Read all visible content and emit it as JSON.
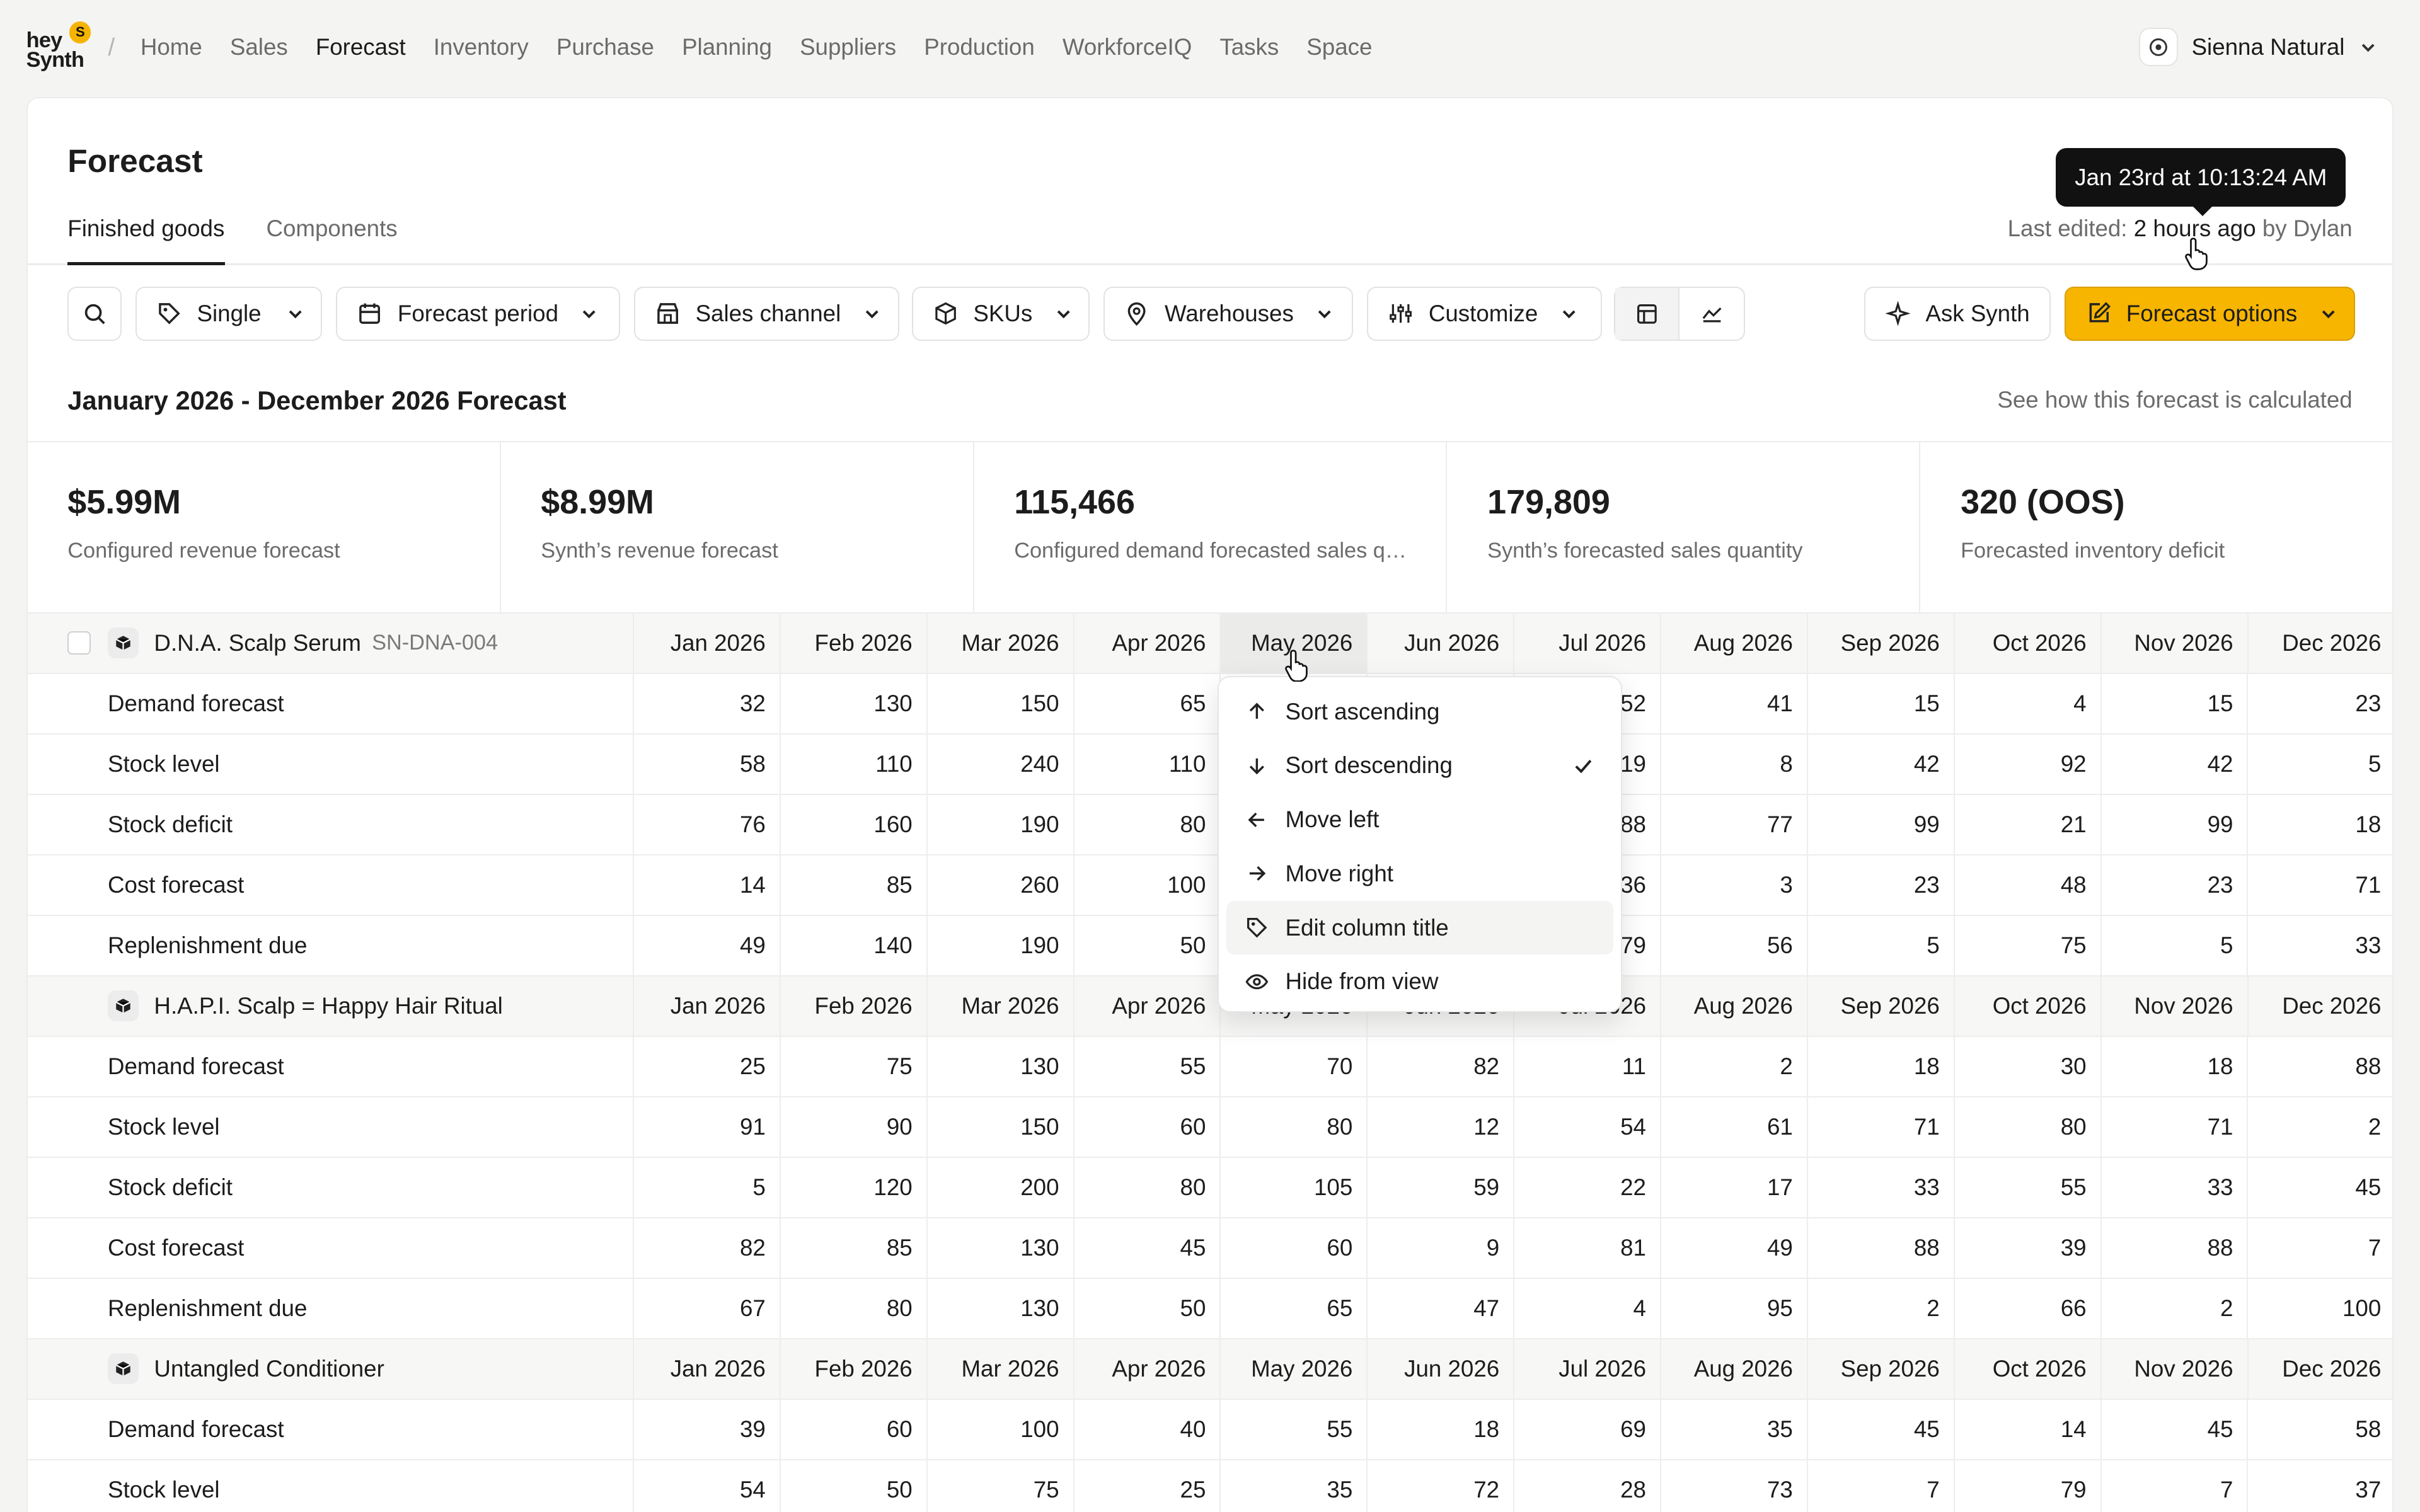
{
  "app": {
    "logo_line1": "hey",
    "logo_line2": "Synth",
    "logo_badge": "S",
    "breadcrumb_sep": "/"
  },
  "nav": [
    "Home",
    "Sales",
    "Forecast",
    "Inventory",
    "Purchase",
    "Planning",
    "Suppliers",
    "Production",
    "WorkforceIQ",
    "Tasks",
    "Space"
  ],
  "nav_active": "Forecast",
  "org": {
    "name": "Sienna Natural"
  },
  "page": {
    "title": "Forecast",
    "tabs": [
      "Finished goods",
      "Components"
    ],
    "last_edited_prefix": "Last edited:",
    "last_edited_time": "2 hours ago",
    "last_edited_by": "by Dylan",
    "tooltip": "Jan 23rd at 10:13:24 AM"
  },
  "toolbar": {
    "single": "Single",
    "period": "Forecast period",
    "channel": "Sales channel",
    "skus": "SKUs",
    "warehouses": "Warehouses",
    "customize": "Customize",
    "ask": "Ask Synth",
    "options": "Forecast options"
  },
  "range": {
    "title": "January 2026 - December 2026 Forecast",
    "link": "See how this forecast is calculated"
  },
  "metrics": [
    {
      "value": "$5.99M",
      "label": "Configured revenue forecast"
    },
    {
      "value": "$8.99M",
      "label": "Synth’s revenue forecast"
    },
    {
      "value": "115,466",
      "label": "Configured demand forecasted sales quantity"
    },
    {
      "value": "179,809",
      "label": "Synth’s forecasted sales quantity"
    },
    {
      "value": "320 (OOS)",
      "label": "Forecasted inventory deficit"
    }
  ],
  "months": [
    "Jan 2026",
    "Feb 2026",
    "Mar 2026",
    "Apr 2026",
    "May 2026",
    "Jun 2026",
    "Jul 2026",
    "Aug 2026",
    "Sep 2026",
    "Oct 2026",
    "Nov 2026",
    "Dec 2026"
  ],
  "products": [
    {
      "name": "D.N.A. Scalp Serum",
      "sku": "SN-DNA-004",
      "rows": [
        {
          "label": "Demand forecast",
          "values": [
            "32",
            "130",
            "150",
            "65",
            "",
            "",
            "52",
            "41",
            "15",
            "4",
            "15",
            "23"
          ]
        },
        {
          "label": "Stock level",
          "values": [
            "58",
            "110",
            "240",
            "110",
            "",
            "",
            "19",
            "8",
            "42",
            "92",
            "42",
            "5"
          ]
        },
        {
          "label": "Stock deficit",
          "values": [
            "76",
            "160",
            "190",
            "80",
            "",
            "",
            "88",
            "77",
            "99",
            "21",
            "99",
            "18"
          ]
        },
        {
          "label": "Cost forecast",
          "values": [
            "14",
            "85",
            "260",
            "100",
            "",
            "",
            "36",
            "3",
            "23",
            "48",
            "23",
            "71"
          ]
        },
        {
          "label": "Replenishment due",
          "values": [
            "49",
            "140",
            "190",
            "50",
            "",
            "",
            "79",
            "56",
            "5",
            "75",
            "5",
            "33"
          ]
        }
      ]
    },
    {
      "name": "H.A.P.I. Scalp = Happy Hair Ritual",
      "sku": "",
      "rows": [
        {
          "label": "Demand forecast",
          "values": [
            "25",
            "75",
            "130",
            "55",
            "70",
            "82",
            "11",
            "2",
            "18",
            "30",
            "18",
            "88"
          ]
        },
        {
          "label": "Stock level",
          "values": [
            "91",
            "90",
            "150",
            "60",
            "80",
            "12",
            "54",
            "61",
            "71",
            "80",
            "71",
            "2"
          ]
        },
        {
          "label": "Stock deficit",
          "values": [
            "5",
            "120",
            "200",
            "80",
            "105",
            "59",
            "22",
            "17",
            "33",
            "55",
            "33",
            "45"
          ]
        },
        {
          "label": "Cost forecast",
          "values": [
            "82",
            "85",
            "130",
            "45",
            "60",
            "9",
            "81",
            "49",
            "88",
            "39",
            "88",
            "7"
          ]
        },
        {
          "label": "Replenishment due",
          "values": [
            "67",
            "80",
            "130",
            "50",
            "65",
            "47",
            "4",
            "95",
            "2",
            "66",
            "2",
            "100"
          ]
        }
      ]
    },
    {
      "name": "Untangled Conditioner",
      "sku": "",
      "rows": [
        {
          "label": "Demand forecast",
          "values": [
            "39",
            "60",
            "100",
            "40",
            "55",
            "18",
            "69",
            "35",
            "45",
            "14",
            "45",
            "58"
          ]
        },
        {
          "label": "Stock level",
          "values": [
            "54",
            "50",
            "75",
            "25",
            "35",
            "72",
            "28",
            "73",
            "7",
            "79",
            "7",
            "37"
          ]
        }
      ]
    }
  ],
  "menu": {
    "items": [
      "Sort ascending",
      "Sort descending",
      "Move left",
      "Move right",
      "Edit column title",
      "Hide from view"
    ],
    "checked": "Sort descending"
  }
}
